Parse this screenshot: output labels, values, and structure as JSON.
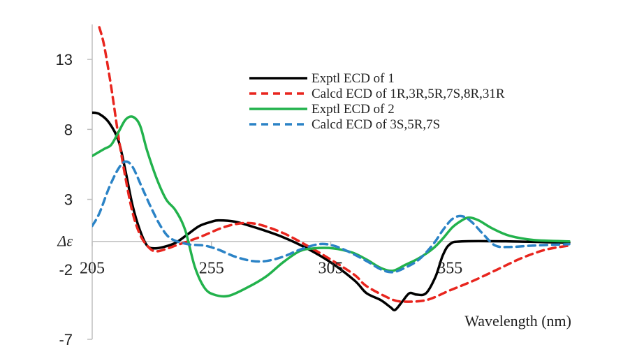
{
  "chart_data": {
    "type": "line",
    "title": "",
    "xlabel": "Wavelength (nm)",
    "ylabel": "Δε",
    "xlim": [
      205,
      405
    ],
    "ylim": [
      -7,
      15.5
    ],
    "x_ticks": [
      "205",
      "255",
      "305",
      "355"
    ],
    "y_ticks": [
      "13",
      "8",
      "3",
      "-2",
      "-7"
    ],
    "grid": false,
    "legend_position": "top-right",
    "series": [
      {
        "name": "Exptl ECD of 1",
        "color": "#000000",
        "dash": "solid",
        "points": [
          [
            205,
            9.2
          ],
          [
            208,
            9.1
          ],
          [
            212,
            8.5
          ],
          [
            216,
            7.2
          ],
          [
            219,
            5.0
          ],
          [
            222,
            2.5
          ],
          [
            225,
            0.8
          ],
          [
            228,
            -0.3
          ],
          [
            231,
            -0.5
          ],
          [
            235,
            -0.4
          ],
          [
            240,
            -0.1
          ],
          [
            245,
            0.5
          ],
          [
            250,
            1.1
          ],
          [
            255,
            1.4
          ],
          [
            258,
            1.5
          ],
          [
            265,
            1.4
          ],
          [
            275,
            0.9
          ],
          [
            285,
            0.3
          ],
          [
            295,
            -0.5
          ],
          [
            305,
            -1.5
          ],
          [
            315,
            -2.8
          ],
          [
            320,
            -3.7
          ],
          [
            326,
            -4.2
          ],
          [
            330,
            -4.7
          ],
          [
            332,
            -4.9
          ],
          [
            335,
            -4.3
          ],
          [
            338,
            -3.7
          ],
          [
            341,
            -3.8
          ],
          [
            345,
            -3.7
          ],
          [
            349,
            -2.5
          ],
          [
            352,
            -1.0
          ],
          [
            355,
            -0.2
          ],
          [
            360,
            0.0
          ],
          [
            380,
            0.0
          ],
          [
            405,
            -0.1
          ]
        ]
      },
      {
        "name": "Calcd ECD of 1R,3R,5R,7S,8R,31R",
        "color": "#e8251e",
        "dash": "dashed",
        "points": [
          [
            208,
            15.3
          ],
          [
            210,
            14.0
          ],
          [
            213,
            11.0
          ],
          [
            216,
            7.5
          ],
          [
            219,
            4.5
          ],
          [
            222,
            2.0
          ],
          [
            225,
            0.5
          ],
          [
            228,
            -0.3
          ],
          [
            231,
            -0.7
          ],
          [
            235,
            -0.6
          ],
          [
            240,
            -0.3
          ],
          [
            250,
            0.3
          ],
          [
            260,
            1.0
          ],
          [
            268,
            1.3
          ],
          [
            275,
            1.2
          ],
          [
            285,
            0.6
          ],
          [
            295,
            -0.3
          ],
          [
            305,
            -1.3
          ],
          [
            315,
            -2.4
          ],
          [
            320,
            -3.2
          ],
          [
            330,
            -4.1
          ],
          [
            335,
            -4.3
          ],
          [
            345,
            -4.2
          ],
          [
            355,
            -3.5
          ],
          [
            365,
            -2.8
          ],
          [
            375,
            -2.0
          ],
          [
            385,
            -1.2
          ],
          [
            395,
            -0.6
          ],
          [
            405,
            -0.3
          ]
        ]
      },
      {
        "name": "Exptl ECD of 2",
        "color": "#22b24c",
        "dash": "solid",
        "points": [
          [
            205,
            6.1
          ],
          [
            210,
            6.6
          ],
          [
            213,
            6.9
          ],
          [
            216,
            7.8
          ],
          [
            219,
            8.7
          ],
          [
            222,
            8.9
          ],
          [
            225,
            8.3
          ],
          [
            228,
            6.5
          ],
          [
            232,
            4.5
          ],
          [
            236,
            3.0
          ],
          [
            240,
            2.2
          ],
          [
            244,
            0.8
          ],
          [
            248,
            -1.8
          ],
          [
            252,
            -3.3
          ],
          [
            256,
            -3.8
          ],
          [
            262,
            -3.9
          ],
          [
            270,
            -3.3
          ],
          [
            278,
            -2.5
          ],
          [
            285,
            -1.5
          ],
          [
            292,
            -0.7
          ],
          [
            298,
            -0.5
          ],
          [
            306,
            -0.5
          ],
          [
            314,
            -0.8
          ],
          [
            320,
            -1.3
          ],
          [
            326,
            -1.9
          ],
          [
            331,
            -2.1
          ],
          [
            336,
            -1.7
          ],
          [
            342,
            -1.2
          ],
          [
            348,
            -0.5
          ],
          [
            352,
            0.2
          ],
          [
            356,
            1.0
          ],
          [
            360,
            1.5
          ],
          [
            363,
            1.7
          ],
          [
            367,
            1.5
          ],
          [
            373,
            0.9
          ],
          [
            380,
            0.4
          ],
          [
            390,
            0.1
          ],
          [
            405,
            0.0
          ]
        ]
      },
      {
        "name": "Calcd ECD of 3S,5R,7S",
        "color": "#2b83c6",
        "dash": "dashed",
        "points": [
          [
            205,
            1.1
          ],
          [
            208,
            2.0
          ],
          [
            212,
            3.8
          ],
          [
            216,
            5.2
          ],
          [
            219,
            5.7
          ],
          [
            222,
            5.3
          ],
          [
            226,
            3.8
          ],
          [
            230,
            2.3
          ],
          [
            234,
            1.0
          ],
          [
            238,
            0.2
          ],
          [
            245,
            -0.2
          ],
          [
            252,
            -0.3
          ],
          [
            258,
            -0.6
          ],
          [
            265,
            -1.1
          ],
          [
            272,
            -1.4
          ],
          [
            278,
            -1.4
          ],
          [
            285,
            -1.1
          ],
          [
            292,
            -0.6
          ],
          [
            300,
            -0.2
          ],
          [
            306,
            -0.3
          ],
          [
            312,
            -0.7
          ],
          [
            320,
            -1.4
          ],
          [
            326,
            -2.0
          ],
          [
            331,
            -2.2
          ],
          [
            336,
            -1.9
          ],
          [
            342,
            -1.3
          ],
          [
            348,
            -0.2
          ],
          [
            352,
            0.8
          ],
          [
            356,
            1.6
          ],
          [
            360,
            1.8
          ],
          [
            364,
            1.4
          ],
          [
            369,
            0.5
          ],
          [
            374,
            -0.3
          ],
          [
            380,
            -0.4
          ],
          [
            390,
            -0.3
          ],
          [
            405,
            -0.2
          ]
        ]
      }
    ]
  }
}
